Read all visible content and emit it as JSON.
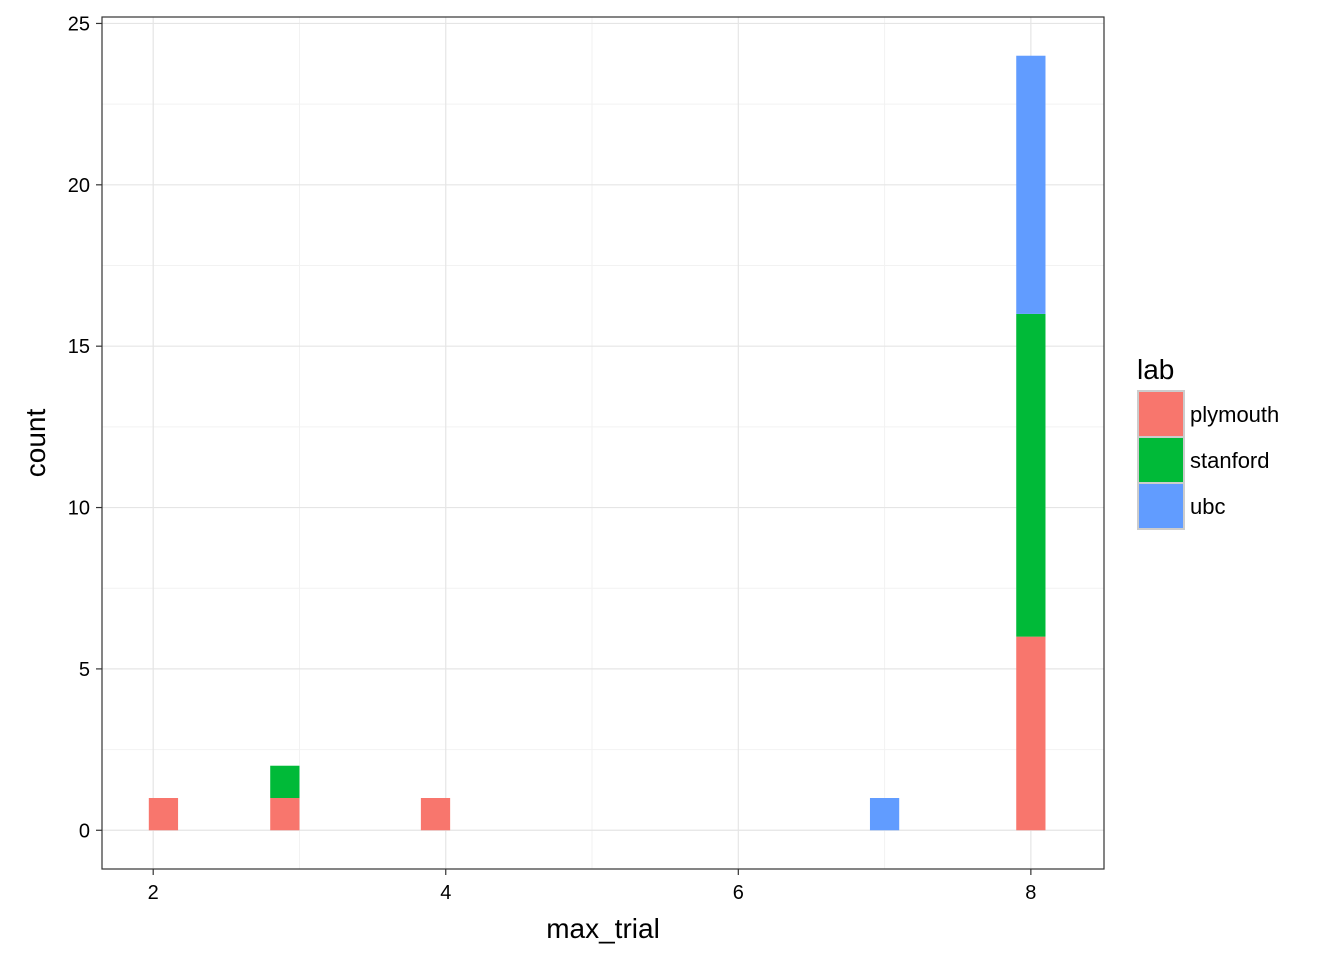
{
  "chart_data": {
    "type": "bar",
    "subtype": "stacked-histogram",
    "title": "",
    "xlabel": "max_trial",
    "ylabel": "count",
    "xlim": [
      1.65,
      8.5
    ],
    "ylim": [
      -1.2,
      25.2
    ],
    "x_ticks": [
      2,
      4,
      6,
      8
    ],
    "x_tick_labels": [
      "2",
      "4",
      "6",
      "8"
    ],
    "y_ticks": [
      0,
      5,
      10,
      15,
      20,
      25
    ],
    "y_tick_labels": [
      "0",
      "5",
      "10",
      "15",
      "20",
      "25"
    ],
    "bin_width": 0.2,
    "grid": true,
    "legend": {
      "title": "lab",
      "position": "right"
    },
    "series": [
      {
        "name": "plymouth",
        "color": "#F8766D",
        "x": [
          2.07,
          2.9,
          3.93,
          7.93,
          8.0
        ],
        "values": [
          1,
          1,
          1,
          0,
          6
        ]
      },
      {
        "name": "stanford",
        "color": "#00BA38",
        "x": [
          2.07,
          2.9,
          3.93,
          7.93,
          8.0
        ],
        "values": [
          0,
          1,
          0,
          0,
          10
        ]
      },
      {
        "name": "ubc",
        "color": "#619CFF",
        "x": [
          2.07,
          2.9,
          3.93,
          7.0,
          8.0
        ],
        "values": [
          0,
          0,
          0,
          1,
          8
        ]
      }
    ]
  }
}
